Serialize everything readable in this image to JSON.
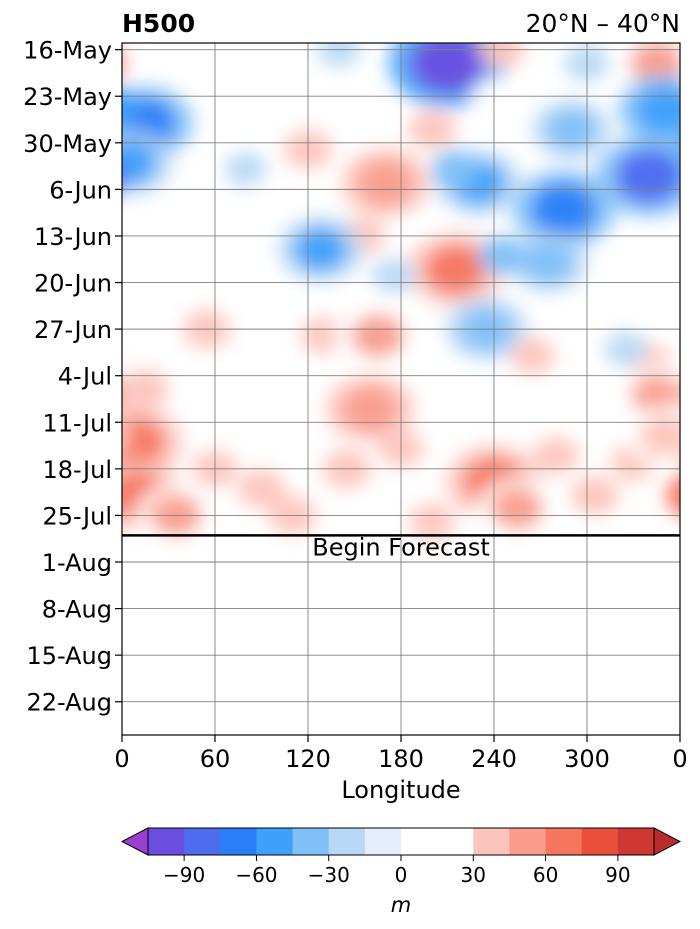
{
  "chart_data": {
    "type": "heatmap",
    "title": "H500",
    "subtitle": "20°N – 40°N",
    "xlabel": "Longitude",
    "ylabel": "",
    "x_ticks": [
      "0",
      "60",
      "120",
      "180",
      "240",
      "300",
      "0"
    ],
    "y_ticks": [
      "16-May",
      "23-May",
      "30-May",
      "6-Jun",
      "13-Jun",
      "20-Jun",
      "27-Jun",
      "4-Jul",
      "11-Jul",
      "18-Jul",
      "25-Jul",
      "1-Aug",
      "8-Aug",
      "15-Aug",
      "22-Aug"
    ],
    "xlim": [
      0,
      360
    ],
    "ylim": [
      "2024-05-15",
      "2024-08-27"
    ],
    "grid": true,
    "annotation": "Begin Forecast",
    "forecast_start_date": "2024-07-28",
    "colorbar": {
      "label": "m",
      "levels": [
        -105,
        -90,
        -75,
        -60,
        -45,
        -30,
        -15,
        0,
        15,
        30,
        45,
        60,
        75,
        90,
        105
      ],
      "tick_labels": [
        "−90",
        "−60",
        "−30",
        "0",
        "30",
        "60",
        "90"
      ],
      "tick_values": [
        -90,
        -60,
        -30,
        0,
        30,
        60,
        90
      ],
      "colors": [
        "#9a3fd2",
        "#6a4ee0",
        "#4d6cf0",
        "#2a7ff8",
        "#3ea0fa",
        "#80bff8",
        "#b8d8f6",
        "#e4eefc",
        "#ffffff",
        "#ffffff",
        "#fdc4bc",
        "#f99c8c",
        "#f5755f",
        "#e94f3b",
        "#cf3732",
        "#b82d2b"
      ],
      "extend": "both"
    },
    "anomaly_features": [
      {
        "lon": 15,
        "date": "2024-05-27",
        "value": -65
      },
      {
        "lon": 5,
        "date": "2024-06-02",
        "value": -50
      },
      {
        "lon": 70,
        "date": "2024-05-19",
        "value": 25
      },
      {
        "lon": 140,
        "date": "2024-05-16",
        "value": -25
      },
      {
        "lon": 210,
        "date": "2024-05-18",
        "value": -95
      },
      {
        "lon": 245,
        "date": "2024-05-16",
        "value": 30
      },
      {
        "lon": 240,
        "date": "2024-05-23",
        "value": 25
      },
      {
        "lon": 290,
        "date": "2024-05-28",
        "value": -40
      },
      {
        "lon": 300,
        "date": "2024-05-18",
        "value": -30
      },
      {
        "lon": 345,
        "date": "2024-05-18",
        "value": 50
      },
      {
        "lon": 340,
        "date": "2024-06-04",
        "value": -80
      },
      {
        "lon": 350,
        "date": "2024-05-25",
        "value": -60
      },
      {
        "lon": 120,
        "date": "2024-05-31",
        "value": 40
      },
      {
        "lon": 170,
        "date": "2024-06-05",
        "value": 55
      },
      {
        "lon": 200,
        "date": "2024-05-28",
        "value": 35
      },
      {
        "lon": 230,
        "date": "2024-06-05",
        "value": -50
      },
      {
        "lon": 215,
        "date": "2024-06-03",
        "value": -35
      },
      {
        "lon": 285,
        "date": "2024-06-09",
        "value": -75
      },
      {
        "lon": 275,
        "date": "2024-06-17",
        "value": -40
      },
      {
        "lon": 80,
        "date": "2024-06-03",
        "value": -25
      },
      {
        "lon": 95,
        "date": "2024-06-07",
        "value": 20
      },
      {
        "lon": 155,
        "date": "2024-06-13",
        "value": 30
      },
      {
        "lon": 205,
        "date": "2024-06-13",
        "value": 25
      },
      {
        "lon": 215,
        "date": "2024-06-18",
        "value": 65
      },
      {
        "lon": 245,
        "date": "2024-06-16",
        "value": -35
      },
      {
        "lon": 128,
        "date": "2024-06-15",
        "value": -50
      },
      {
        "lon": 175,
        "date": "2024-06-19",
        "value": -25
      },
      {
        "lon": 235,
        "date": "2024-06-27",
        "value": -45
      },
      {
        "lon": 20,
        "date": "2024-06-23",
        "value": 20
      },
      {
        "lon": 55,
        "date": "2024-06-27",
        "value": 40
      },
      {
        "lon": 80,
        "date": "2024-06-25",
        "value": 25
      },
      {
        "lon": 130,
        "date": "2024-06-28",
        "value": 30
      },
      {
        "lon": 165,
        "date": "2024-06-28",
        "value": 50
      },
      {
        "lon": 140,
        "date": "2024-07-03",
        "value": 25
      },
      {
        "lon": 265,
        "date": "2024-07-01",
        "value": 30
      },
      {
        "lon": 290,
        "date": "2024-06-29",
        "value": 20
      },
      {
        "lon": 340,
        "date": "2024-07-02",
        "value": 30
      },
      {
        "lon": 345,
        "date": "2024-07-07",
        "value": 45
      },
      {
        "lon": 325,
        "date": "2024-06-30",
        "value": -25
      },
      {
        "lon": 160,
        "date": "2024-07-09",
        "value": 55
      },
      {
        "lon": 15,
        "date": "2024-07-06",
        "value": 35
      },
      {
        "lon": 50,
        "date": "2024-07-07",
        "value": 25
      },
      {
        "lon": 100,
        "date": "2024-07-07",
        "value": 25
      },
      {
        "lon": 270,
        "date": "2024-07-07",
        "value": 20
      },
      {
        "lon": 8,
        "date": "2024-07-14",
        "value": 65
      },
      {
        "lon": 10,
        "date": "2024-07-22",
        "value": 60
      },
      {
        "lon": 35,
        "date": "2024-07-25",
        "value": 45
      },
      {
        "lon": 60,
        "date": "2024-07-18",
        "value": 30
      },
      {
        "lon": 90,
        "date": "2024-07-21",
        "value": 35
      },
      {
        "lon": 110,
        "date": "2024-07-25",
        "value": 35
      },
      {
        "lon": 145,
        "date": "2024-07-18",
        "value": 40
      },
      {
        "lon": 180,
        "date": "2024-07-15",
        "value": 30
      },
      {
        "lon": 240,
        "date": "2024-07-20",
        "value": 65
      },
      {
        "lon": 255,
        "date": "2024-07-24",
        "value": 45
      },
      {
        "lon": 280,
        "date": "2024-07-16",
        "value": 30
      },
      {
        "lon": 305,
        "date": "2024-07-22",
        "value": 35
      },
      {
        "lon": 330,
        "date": "2024-07-17",
        "value": 30
      },
      {
        "lon": 350,
        "date": "2024-07-13",
        "value": 40
      },
      {
        "lon": 200,
        "date": "2024-07-26",
        "value": 30
      },
      {
        "lon": 15,
        "date": "2024-08-02",
        "value": 15
      },
      {
        "lon": 80,
        "date": "2024-08-04",
        "value": 14
      },
      {
        "lon": 150,
        "date": "2024-08-03",
        "value": 14
      },
      {
        "lon": 220,
        "date": "2024-08-03",
        "value": 14
      },
      {
        "lon": 290,
        "date": "2024-08-02",
        "value": 14
      },
      {
        "lon": 340,
        "date": "2024-08-04",
        "value": 14
      },
      {
        "lon": 225,
        "date": "2024-08-18",
        "value": 14
      }
    ]
  }
}
